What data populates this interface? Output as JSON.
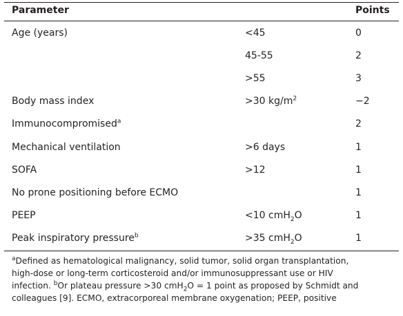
{
  "table": {
    "header": {
      "parameter": "Parameter",
      "points": "Points"
    },
    "rows": [
      {
        "parameter": "Age (years)",
        "value": "<45",
        "points": "0"
      },
      {
        "value": "45-55",
        "points": "2"
      },
      {
        "value": ">55",
        "points": "3"
      },
      {
        "parameter": "Body mass index",
        "value": [
          {
            "text": ">30 kg/m"
          },
          {
            "text": "2",
            "style": "sup"
          }
        ],
        "points": "−2"
      },
      {
        "parameter": [
          {
            "text": "Immunocompromised"
          },
          {
            "text": "a",
            "style": "sup"
          }
        ],
        "points": "2"
      },
      {
        "parameter": "Mechanical ventilation",
        "value": ">6 days",
        "points": "1"
      },
      {
        "parameter": "SOFA",
        "value": ">12",
        "points": "1"
      },
      {
        "parameter": "No prone positioning before ECMO",
        "points": "1"
      },
      {
        "parameter": "PEEP",
        "value": [
          {
            "text": "<10 cmH"
          },
          {
            "text": "2",
            "style": "sub"
          },
          {
            "text": "O"
          }
        ],
        "points": "1"
      },
      {
        "parameter": [
          {
            "text": "Peak inspiratory pressure"
          },
          {
            "text": "b",
            "style": "sup"
          }
        ],
        "value": [
          {
            "text": ">35 cmH"
          },
          {
            "text": "2",
            "style": "sub"
          },
          {
            "text": "O"
          }
        ],
        "points": "1"
      }
    ],
    "footnote": [
      [
        {
          "text": "a",
          "style": "sup"
        },
        {
          "text": "Defined as hematological malignancy, solid tumor, solid organ transplantation,"
        }
      ],
      [
        {
          "text": "high-dose or long-term corticosteroid and/or immunosuppressant use or HIV"
        }
      ],
      [
        {
          "text": "infection. "
        },
        {
          "text": "b",
          "style": "sup"
        },
        {
          "text": "Or plateau pressure >30 cmH"
        },
        {
          "text": "2",
          "style": "sub"
        },
        {
          "text": "O = 1 point as proposed by Schmidt and"
        }
      ],
      [
        {
          "text": "colleagues [9]. ECMO, extracorporeal membrane oxygenation; PEEP, positive"
        }
      ]
    ]
  }
}
